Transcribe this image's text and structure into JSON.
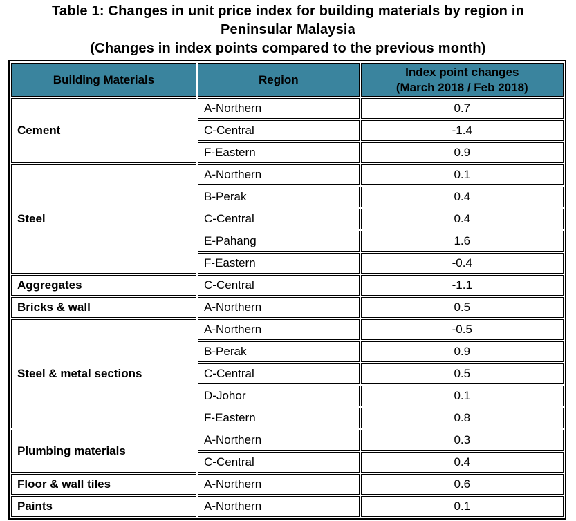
{
  "title": {
    "lines": [
      "Table 1: Changes in unit price index for building materials by region in",
      "Peninsular Malaysia",
      "(Changes in index points compared to the previous month)"
    ]
  },
  "table": {
    "columns": {
      "materials": "Building Materials",
      "region": "Region",
      "index_line1": "Index point changes",
      "index_line2": "(March 2018 / Feb 2018)"
    },
    "groups": [
      {
        "material": "Cement",
        "rows": [
          {
            "region": "A-Northern",
            "change": "0.7"
          },
          {
            "region": "C-Central",
            "change": "-1.4"
          },
          {
            "region": "F-Eastern",
            "change": "0.9"
          }
        ]
      },
      {
        "material": "Steel",
        "rows": [
          {
            "region": "A-Northern",
            "change": "0.1"
          },
          {
            "region": "B-Perak",
            "change": "0.4"
          },
          {
            "region": "C-Central",
            "change": "0.4"
          },
          {
            "region": "E-Pahang",
            "change": "1.6"
          },
          {
            "region": "F-Eastern",
            "change": "-0.4"
          }
        ]
      },
      {
        "material": "Aggregates",
        "rows": [
          {
            "region": "C-Central",
            "change": "-1.1"
          }
        ]
      },
      {
        "material": "Bricks & wall",
        "rows": [
          {
            "region": "A-Northern",
            "change": "0.5"
          }
        ]
      },
      {
        "material": "Steel & metal sections",
        "rows": [
          {
            "region": "A-Northern",
            "change": "-0.5"
          },
          {
            "region": "B-Perak",
            "change": "0.9"
          },
          {
            "region": "C-Central",
            "change": "0.5"
          },
          {
            "region": "D-Johor",
            "change": "0.1"
          },
          {
            "region": "F-Eastern",
            "change": "0.8"
          }
        ]
      },
      {
        "material": "Plumbing materials",
        "rows": [
          {
            "region": "A-Northern",
            "change": "0.3"
          },
          {
            "region": "C-Central",
            "change": "0.4"
          }
        ]
      },
      {
        "material": "Floor & wall tiles",
        "rows": [
          {
            "region": "A-Northern",
            "change": "0.6"
          }
        ]
      },
      {
        "material": "Paints",
        "rows": [
          {
            "region": "A-Northern",
            "change": "0.1"
          }
        ]
      }
    ]
  },
  "colors": {
    "header_bg": "#3A849E",
    "border": "#000000",
    "text": "#000000",
    "background": "#FFFFFF"
  },
  "chart_data": {
    "type": "table",
    "title": "Table 1: Changes in unit price index for building materials by region in Peninsular Malaysia (Changes in index points compared to the previous month)",
    "columns": [
      "Building Materials",
      "Region",
      "Index point changes (March 2018 / Feb 2018)"
    ],
    "rows": [
      [
        "Cement",
        "A-Northern",
        0.7
      ],
      [
        "Cement",
        "C-Central",
        -1.4
      ],
      [
        "Cement",
        "F-Eastern",
        0.9
      ],
      [
        "Steel",
        "A-Northern",
        0.1
      ],
      [
        "Steel",
        "B-Perak",
        0.4
      ],
      [
        "Steel",
        "C-Central",
        0.4
      ],
      [
        "Steel",
        "E-Pahang",
        1.6
      ],
      [
        "Steel",
        "F-Eastern",
        -0.4
      ],
      [
        "Aggregates",
        "C-Central",
        -1.1
      ],
      [
        "Bricks & wall",
        "A-Northern",
        0.5
      ],
      [
        "Steel & metal sections",
        "A-Northern",
        -0.5
      ],
      [
        "Steel & metal sections",
        "B-Perak",
        0.9
      ],
      [
        "Steel & metal sections",
        "C-Central",
        0.5
      ],
      [
        "Steel & metal sections",
        "D-Johor",
        0.1
      ],
      [
        "Steel & metal sections",
        "F-Eastern",
        0.8
      ],
      [
        "Plumbing materials",
        "A-Northern",
        0.3
      ],
      [
        "Plumbing materials",
        "C-Central",
        0.4
      ],
      [
        "Floor & wall tiles",
        "A-Northern",
        0.6
      ],
      [
        "Paints",
        "A-Northern",
        0.1
      ]
    ]
  }
}
